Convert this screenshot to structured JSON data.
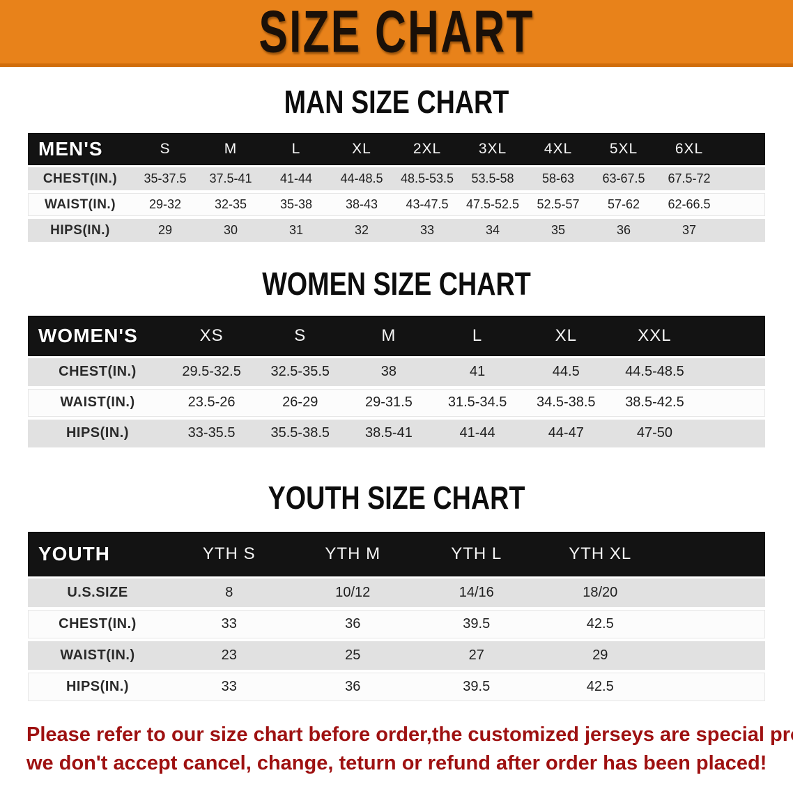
{
  "banner": {
    "title": "SIZE CHART"
  },
  "colors": {
    "banner_bg": "#e8821a",
    "banner_border": "#d06d0c",
    "table_header_bg": "#131313",
    "row_gray": "#e1e1e1",
    "row_white": "#fcfcfc",
    "disclaimer_red": "#9e1111"
  },
  "tables": [
    {
      "id": "men",
      "title": "MAN SIZE CHART",
      "header_label": "MEN'S",
      "columns": [
        "S",
        "M",
        "L",
        "XL",
        "2XL",
        "3XL",
        "4XL",
        "5XL",
        "6XL"
      ],
      "rows": [
        {
          "label": "CHEST(IN.)",
          "values": [
            "35-37.5",
            "37.5-41",
            "41-44",
            "44-48.5",
            "48.5-53.5",
            "53.5-58",
            "58-63",
            "63-67.5",
            "67.5-72"
          ]
        },
        {
          "label": "WAIST(IN.)",
          "values": [
            "29-32",
            "32-35",
            "35-38",
            "38-43",
            "43-47.5",
            "47.5-52.5",
            "52.5-57",
            "57-62",
            "62-66.5"
          ]
        },
        {
          "label": "HIPS(IN.)",
          "values": [
            "29",
            "30",
            "31",
            "32",
            "33",
            "34",
            "35",
            "36",
            "37"
          ]
        }
      ]
    },
    {
      "id": "women",
      "title": "WOMEN SIZE CHART",
      "header_label": "WOMEN'S",
      "columns": [
        "XS",
        "S",
        "M",
        "L",
        "XL",
        "XXL"
      ],
      "rows": [
        {
          "label": "CHEST(IN.)",
          "values": [
            "29.5-32.5",
            "32.5-35.5",
            "38",
            "41",
            "44.5",
            "44.5-48.5"
          ]
        },
        {
          "label": "WAIST(IN.)",
          "values": [
            "23.5-26",
            "26-29",
            "29-31.5",
            "31.5-34.5",
            "34.5-38.5",
            "38.5-42.5"
          ]
        },
        {
          "label": "HIPS(IN.)",
          "values": [
            "33-35.5",
            "35.5-38.5",
            "38.5-41",
            "41-44",
            "44-47",
            "47-50"
          ]
        }
      ]
    },
    {
      "id": "youth",
      "title": "YOUTH SIZE CHART",
      "header_label": "YOUTH",
      "columns": [
        "YTH S",
        "YTH M",
        "YTH L",
        "YTH XL"
      ],
      "rows": [
        {
          "label": "U.S.SIZE",
          "values": [
            "8",
            "10/12",
            "14/16",
            "18/20"
          ]
        },
        {
          "label": "CHEST(IN.)",
          "values": [
            "33",
            "36",
            "39.5",
            "42.5"
          ]
        },
        {
          "label": "WAIST(IN.)",
          "values": [
            "23",
            "25",
            "27",
            "29"
          ]
        },
        {
          "label": "HIPS(IN.)",
          "values": [
            "33",
            "36",
            "39.5",
            "42.5"
          ]
        }
      ]
    }
  ],
  "disclaimer": {
    "line1": "Please refer to our size chart before order,the customized jerseys are special products,",
    "line2": "we don't accept cancel, change, teturn or refund after order has been placed!"
  }
}
